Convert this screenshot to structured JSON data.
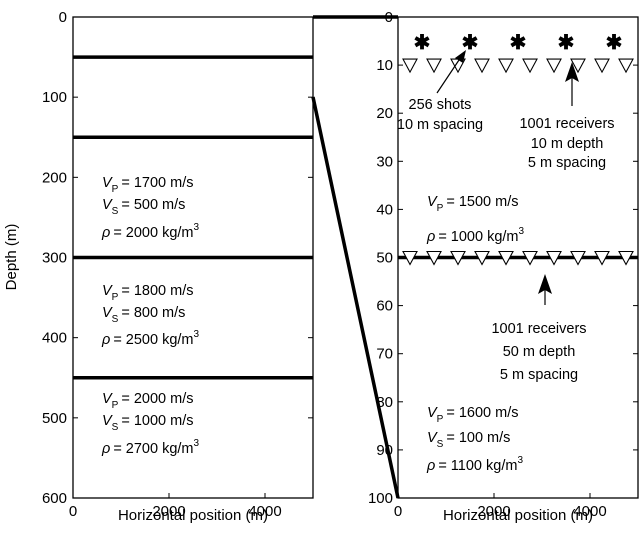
{
  "left_panel": {
    "xlabel": "Horizontal position (m)",
    "ylabel": "Depth (m)",
    "x_ticks": [
      "0",
      "2000",
      "4000"
    ],
    "y_ticks": [
      "0",
      "100",
      "200",
      "300",
      "400",
      "500",
      "600"
    ],
    "xlim": [
      0,
      5000
    ],
    "ylim": [
      0,
      600
    ],
    "interfaces_depth_m": [
      50,
      150,
      300,
      450
    ],
    "layers": [
      {
        "vp": "= 1700 m/s",
        "vs": "= 500 m/s",
        "rho": "= 2000 kg/m"
      },
      {
        "vp": "= 1800 m/s",
        "vs": "= 800 m/s",
        "rho": "= 2500 kg/m"
      },
      {
        "vp": "= 2000 m/s",
        "vs": "= 1000 m/s",
        "rho": "= 2700 kg/m"
      }
    ]
  },
  "right_panel": {
    "xlabel": "Horizontal position (m)",
    "x_ticks": [
      "0",
      "2000",
      "4000"
    ],
    "y_ticks": [
      "0",
      "10",
      "20",
      "30",
      "40",
      "50",
      "60",
      "70",
      "80",
      "90",
      "100"
    ],
    "xlim": [
      0,
      5000
    ],
    "ylim": [
      0,
      100
    ],
    "interface_depth_m": 50,
    "shot_symbol": "✱",
    "shot_depth_m": 5,
    "shot_positions_m": [
      500,
      1500,
      2500,
      3500,
      4500
    ],
    "receiver_symbol": "▽",
    "receiver_line_depths_m": [
      10,
      50
    ],
    "receiver_positions_m": [
      250,
      750,
      1250,
      1750,
      2250,
      2750,
      3250,
      3750,
      4250,
      4750
    ],
    "shots_text": [
      "256 shots",
      "10 m spacing"
    ],
    "shallow_receivers_text": [
      "1001 receivers",
      "10 m depth",
      "5 m spacing"
    ],
    "deep_receivers_text": [
      "1001 receivers",
      "50 m depth",
      "5 m spacing"
    ],
    "water_layer": {
      "vp": "= 1500 m/s",
      "rho": "= 1000 kg/m"
    },
    "seabed_layer": {
      "vp": "= 1600 m/s",
      "vs": "= 100 m/s",
      "rho": "= 1100 kg/m"
    }
  },
  "symbols": {
    "vp_letter": "V",
    "vp_sub": "P",
    "vs_letter": "V",
    "vs_sub": "S",
    "rho_letter": "ρ",
    "rho_sup": "3"
  }
}
